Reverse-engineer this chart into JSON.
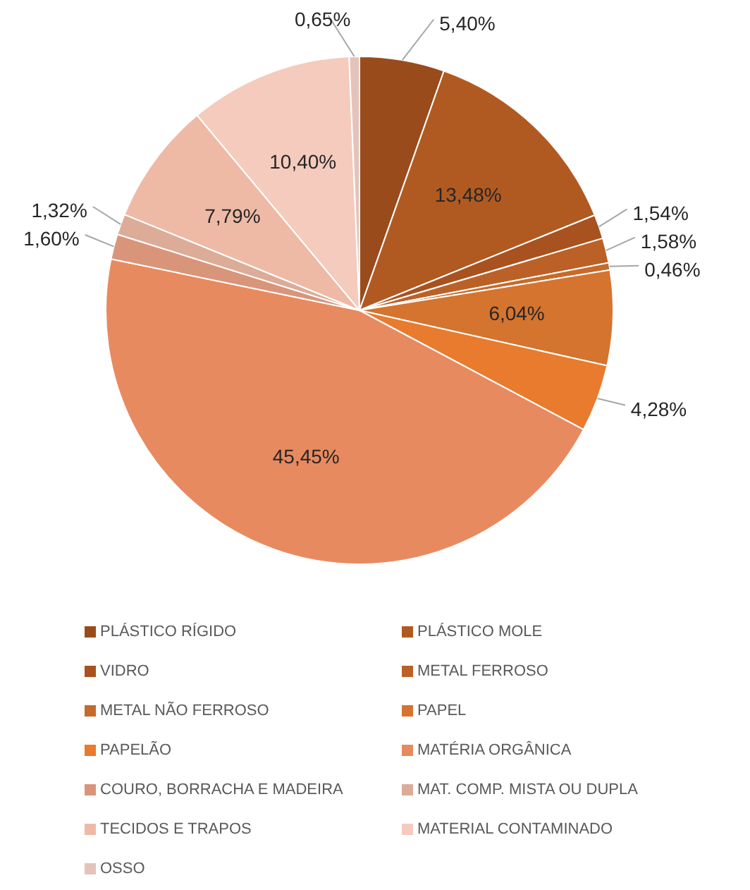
{
  "chart_data": {
    "type": "pie",
    "categories": [
      "PLÁSTICO RÍGIDO",
      "PLÁSTICO MOLE",
      "VIDRO",
      "METAL FERROSO",
      "METAL NÃO FERROSO",
      "PAPEL",
      "PAPELÃO",
      "MATÉRIA ORGÂNICA",
      "COURO, BORRACHA E MADEIRA",
      "MAT. COMP. MISTA OU DUPLA",
      "TECIDOS E TRAPOS",
      "MATERIAL CONTAMINADO",
      "OSSO"
    ],
    "values": [
      5.4,
      13.48,
      1.54,
      1.58,
      0.46,
      6.04,
      4.28,
      45.45,
      1.6,
      1.32,
      7.79,
      10.4,
      0.65
    ],
    "value_labels": [
      "5,40%",
      "13,48%",
      "1,54%",
      "1,58%",
      "0,46%",
      "6,04%",
      "4,28%",
      "45,45%",
      "1,60%",
      "1,32%",
      "7,79%",
      "10,40%",
      "0,65%"
    ],
    "colors": [
      "#9a4b1c",
      "#b05a22",
      "#a8521f",
      "#bb6127",
      "#c66a2b",
      "#d4742f",
      "#e87b2e",
      "#e88a5f",
      "#d9957a",
      "#dcac98",
      "#eebaa6",
      "#f4cbbd",
      "#e4c3bb"
    ],
    "legend": "bottom"
  }
}
